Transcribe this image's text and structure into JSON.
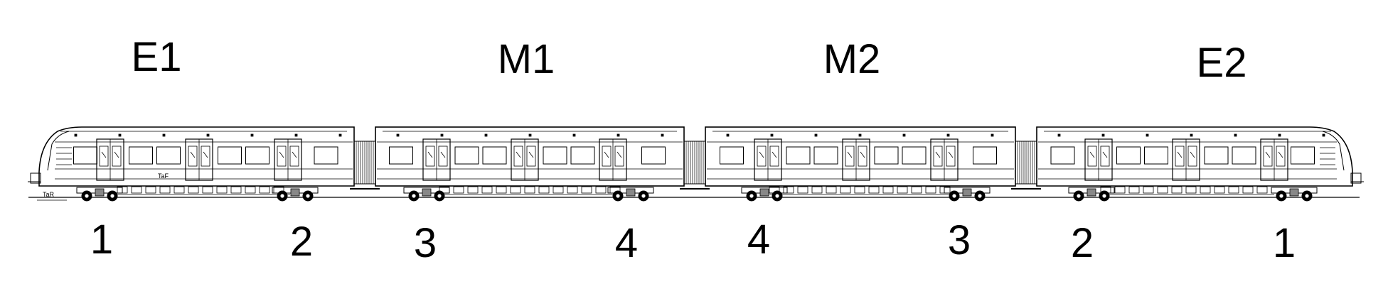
{
  "diagram": {
    "cars": [
      {
        "id": "E1",
        "label": "E1",
        "type": "end",
        "cab": "left"
      },
      {
        "id": "M1",
        "label": "M1",
        "type": "middle"
      },
      {
        "id": "M2",
        "label": "M2",
        "type": "middle"
      },
      {
        "id": "E2",
        "label": "E2",
        "type": "end",
        "cab": "right"
      }
    ],
    "bogie_labels": [
      "1",
      "2",
      "3",
      "4",
      "4",
      "3",
      "2",
      "1"
    ],
    "markings": {
      "car_mark": "TaF",
      "rail_mark": "TaR"
    },
    "colors": {
      "line": "#000000",
      "background": "#ffffff"
    }
  }
}
